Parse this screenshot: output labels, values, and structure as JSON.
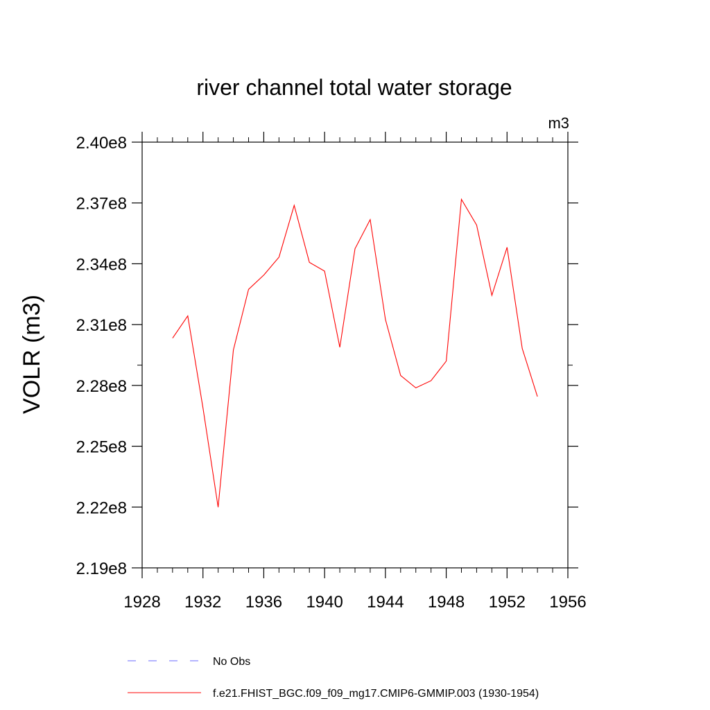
{
  "chart_data": {
    "type": "line",
    "title": "river channel total water storage",
    "units_label": "m3",
    "ylabel": "VOLR  (m3)",
    "xlabel": "",
    "xlim": [
      1928,
      1956
    ],
    "ylim": [
      219000000.0,
      240000000.0
    ],
    "x_ticks": [
      1928,
      1932,
      1936,
      1940,
      1944,
      1948,
      1952,
      1956
    ],
    "x_tick_labels": [
      "1928",
      "1932",
      "1936",
      "1940",
      "1944",
      "1948",
      "1952",
      "1956"
    ],
    "y_ticks": [
      219000000.0,
      222000000.0,
      225000000.0,
      228000000.0,
      231000000.0,
      234000000.0,
      237000000.0,
      240000000.0
    ],
    "y_tick_labels": [
      "2.19e8",
      "2.22e8",
      "2.25e8",
      "2.28e8",
      "2.31e8",
      "2.34e8",
      "2.37e8",
      "2.40e8"
    ],
    "y_minor_step": 10000000.0,
    "x_minor_step": 1,
    "grid": false,
    "legend_position": "bottom",
    "series": [
      {
        "name": "f.e21.FHIST_BGC.f09_f09_mg17.CMIP6-GMMIP.003 (1930-1954)",
        "color": "#ff0000",
        "style": "solid",
        "x": [
          1930,
          1931,
          1932,
          1933,
          1934,
          1935,
          1936,
          1937,
          1938,
          1939,
          1940,
          1941,
          1942,
          1943,
          1944,
          1945,
          1946,
          1947,
          1948,
          1949,
          1950,
          1951,
          1952,
          1953,
          1954
        ],
        "values": [
          230330000,
          231430000,
          226900000,
          221990000,
          229750000,
          232740000,
          233440000,
          234330000,
          236880000,
          234070000,
          233640000,
          229880000,
          234740000,
          236180000,
          231250000,
          228490000,
          227880000,
          228230000,
          229200000,
          237180000,
          235910000,
          232440000,
          234810000,
          229820000,
          227450000
        ]
      }
    ],
    "legend": [
      {
        "label": "No Obs",
        "color": "#6a6aff",
        "style": "dashed"
      },
      {
        "label": "f.e21.FHIST_BGC.f09_f09_mg17.CMIP6-GMMIP.003 (1930-1954)",
        "color": "#ff0000",
        "style": "solid"
      }
    ]
  }
}
